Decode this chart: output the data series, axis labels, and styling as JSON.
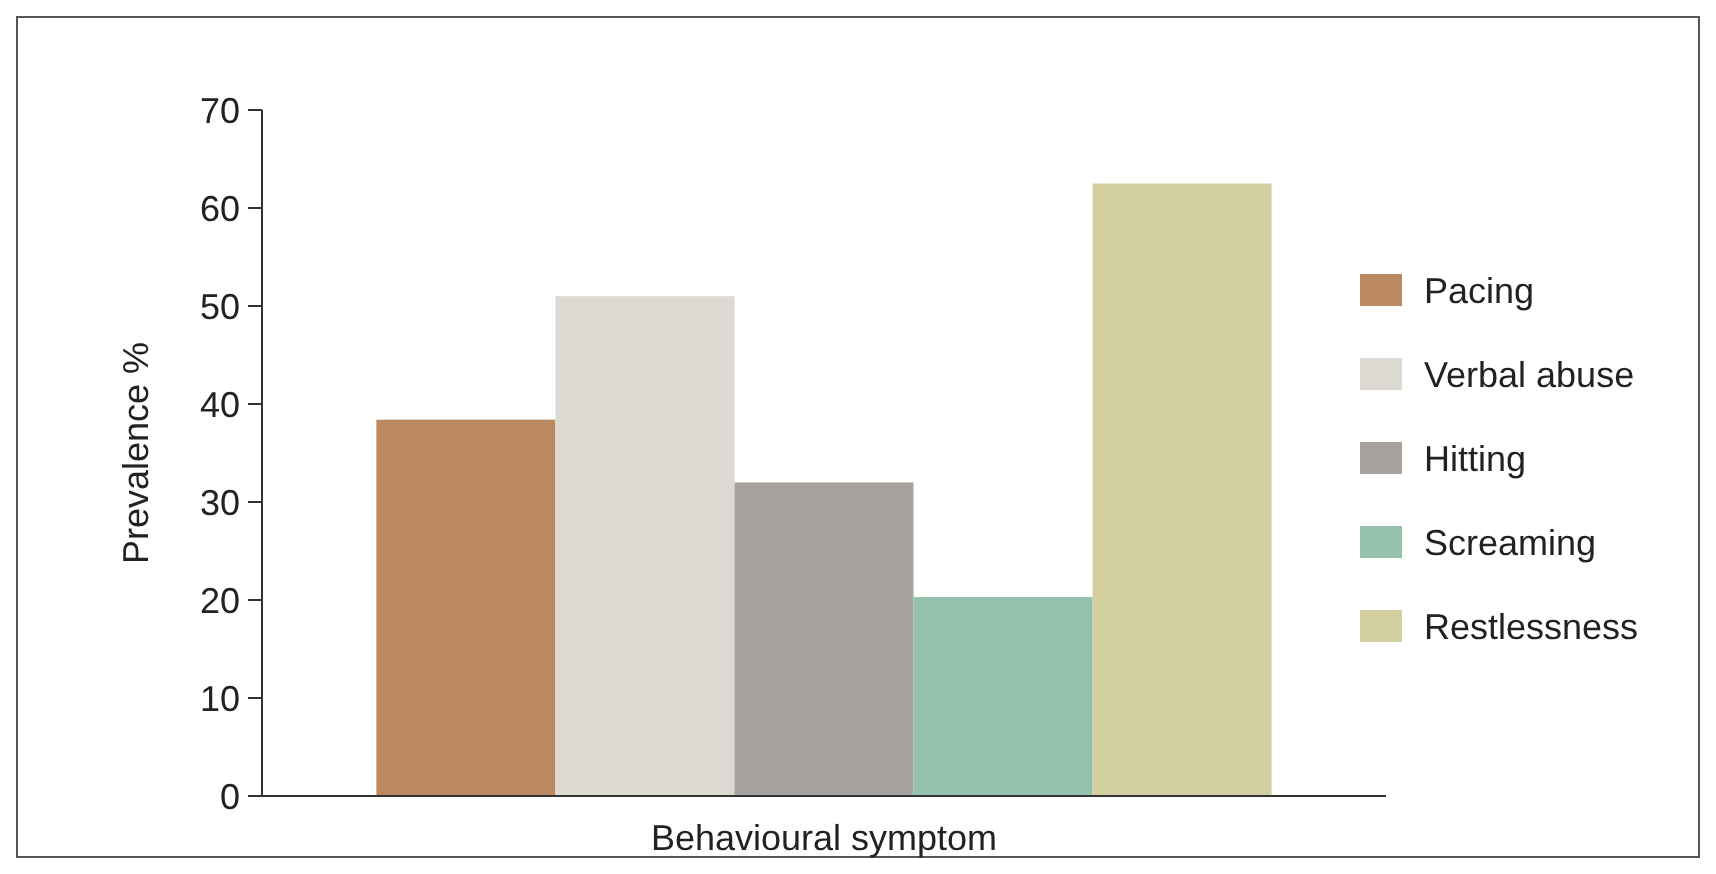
{
  "chart_data": {
    "type": "bar",
    "xlabel": "Behavioural symptom",
    "ylabel": "Prevalence %",
    "categories": [
      null
    ],
    "series": [
      {
        "name": "Pacing",
        "color": "#bb8860",
        "values": [
          38.4
        ]
      },
      {
        "name": "Verbal abuse",
        "color": "#dcd9d2",
        "values": [
          51
        ]
      },
      {
        "name": "Hitting",
        "color": "#a8a29e",
        "values": [
          32
        ]
      },
      {
        "name": "Screaming",
        "color": "#95c2ac",
        "values": [
          20.3
        ]
      },
      {
        "name": "Restlessness",
        "color": "#d3cfa1",
        "values": [
          62.5
        ]
      }
    ],
    "ylim": [
      0,
      70
    ],
    "yticks": [
      0,
      10,
      20,
      30,
      40,
      50,
      60,
      70
    ],
    "grid": false,
    "legend": "right"
  }
}
